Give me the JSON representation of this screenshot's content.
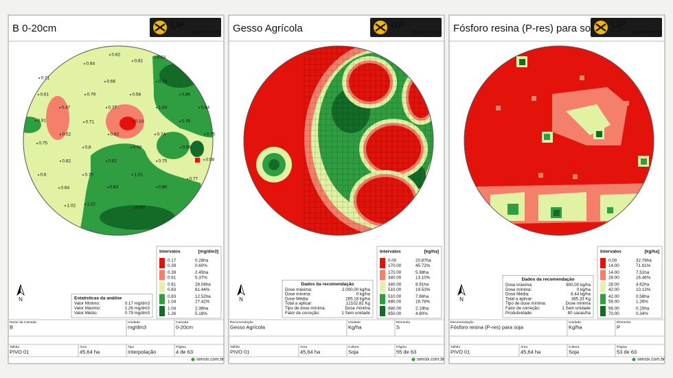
{
  "site": "sensix.com.br",
  "logo": {
    "brand": "UP",
    "tagline": "Agritechnology"
  },
  "north": "N",
  "panels": [
    {
      "title": "B 0-20cm",
      "legend": {
        "title": "Intervalos",
        "unit": "[mg/dm3]",
        "rows": [
          {
            "color": "#e3120b",
            "low": "0.17",
            "high": "0.39",
            "area": "0.28ha",
            "pct": "0.60%"
          },
          {
            "color": "#f4806c",
            "low": "0.39",
            "high": "0.61",
            "area": "2.45ha",
            "pct": "5.37%"
          },
          {
            "color": "#e2f2a4",
            "low": "0.61",
            "high": "0.83",
            "area": "28.04ha",
            "pct": "61.44%"
          },
          {
            "color": "#2f9e41",
            "low": "0.83",
            "high": "1.04",
            "area": "12.52ha",
            "pct": "27.42%"
          },
          {
            "color": "#136b27",
            "low": "1.04",
            "high": "1.26",
            "area": "2.36ha",
            "pct": "5.18%"
          }
        ]
      },
      "box": {
        "title": "Estatísticas da análise",
        "rows": [
          {
            "label": "Valor Mínimo:",
            "value": "0.17 mg/dm3"
          },
          {
            "label": "Valor Máximo:",
            "value": "1.26 mg/dm3"
          },
          {
            "label": "Valor Médio:",
            "value": "0.79 mg/dm3"
          }
        ]
      },
      "info": [
        {
          "label": "Nome da Camada",
          "value": "B"
        },
        {
          "label": "Unidade",
          "value": "mg/dm3"
        },
        {
          "label": "Camada",
          "value": "0-20cm"
        }
      ],
      "meta": [
        {
          "label": "Talhão",
          "value": "PIVO 01"
        },
        {
          "label": "Área",
          "value": "45,64 ha"
        },
        {
          "label": "Tipo",
          "value": "Interpolação"
        },
        {
          "label": "Página",
          "value": "4 de 63"
        }
      ],
      "map_labels": [
        "0.82",
        "0.81",
        "0.63",
        "0.64",
        "0.71",
        "0.66",
        "0.74",
        "0.61",
        "0.79",
        "0.58",
        "0.86",
        "0.47",
        "0.77",
        "1.03",
        "0.64",
        "0.91",
        "0.71",
        "0.14",
        "0.76",
        "0.52",
        "0.63",
        "0.74",
        "0.75",
        "0.75",
        "0.8",
        "0.99",
        "0.99",
        "0.82",
        "0.62",
        "0.75",
        "0.58",
        "0.6",
        "0.75",
        "1.01",
        "0.77",
        "0.64",
        "0.83",
        "0.86",
        "1.02",
        "1.02",
        "0.97"
      ]
    },
    {
      "title": "Gesso Agrícola",
      "legend": {
        "title": "Intervalos",
        "unit": "[kg/ha]",
        "rows": [
          {
            "color": "#e3120b",
            "low": "0.00",
            "high": "170.00",
            "area": "20.87ha",
            "pct": "45.72%"
          },
          {
            "color": "#f4806c",
            "low": "170.00",
            "high": "340.00",
            "area": "5.98ha",
            "pct": "13.10%"
          },
          {
            "color": "#e2f2a4",
            "low": "340.00",
            "high": "510.00",
            "area": "8.91ha",
            "pct": "19.53%"
          },
          {
            "color": "#2f9e41",
            "low": "510.00",
            "high": "680.00",
            "area": "7.66ha",
            "pct": "16.78%"
          },
          {
            "color": "#136b27",
            "low": "680.00",
            "high": "850.00",
            "area": "2.19ha",
            "pct": "4.80%"
          }
        ]
      },
      "box": {
        "title": "Dados da recomendação",
        "rows": [
          {
            "label": "Dose máxima:",
            "value": "2.000,00 kg/ha"
          },
          {
            "label": "Dose mínima:",
            "value": "0 kg/ha"
          },
          {
            "label": "Dose Média:",
            "value": "265.18 kg/ha"
          },
          {
            "label": "Total a aplicar:",
            "value": "12102.82 Kg"
          },
          {
            "label": "Tipo de dose mínima:",
            "value": "Dose mínima"
          },
          {
            "label": "Fator de correção:",
            "value": "1 Sem unidade"
          }
        ]
      },
      "info": [
        {
          "label": "Recomendação",
          "value": "Gesso Agrícola"
        },
        {
          "label": "Unidade",
          "value": "Kg/ha"
        },
        {
          "label": "Elemento",
          "value": "S"
        }
      ],
      "meta": [
        {
          "label": "Talhão",
          "value": "PIVO 01"
        },
        {
          "label": "Área",
          "value": "45,64 ha"
        },
        {
          "label": "Cultura",
          "value": "Soja"
        },
        {
          "label": "Página",
          "value": "55 de 63"
        }
      ]
    },
    {
      "title": "Fósforo resina (P-res) para soja",
      "legend": {
        "title": "Intervalos",
        "unit": "[kg/ha]",
        "rows": [
          {
            "color": "#e3120b",
            "low": "0.00",
            "high": "14.00",
            "area": "32.78ha",
            "pct": "71.81%"
          },
          {
            "color": "#f4806c",
            "low": "14.00",
            "high": "28.00",
            "area": "7.51ha",
            "pct": "16.46%"
          },
          {
            "color": "#e2f2a4",
            "low": "28.00",
            "high": "42.00",
            "area": "4.62ha",
            "pct": "10.13%"
          },
          {
            "color": "#2f9e41",
            "low": "42.00",
            "high": "56.00",
            "area": "0.58ha",
            "pct": "1.26%"
          },
          {
            "color": "#136b27",
            "low": "56.00",
            "high": "70.00",
            "area": "0.15ha",
            "pct": "0.34%"
          }
        ]
      },
      "box": {
        "title": "Dados da recomendação",
        "rows": [
          {
            "label": "Dose máxima:",
            "value": "800,00 kg/ha"
          },
          {
            "label": "Dose mínima:",
            "value": "0 kg/ha"
          },
          {
            "label": "Dose Média:",
            "value": "8.44 kg/ha"
          },
          {
            "label": "Total a aplicar:",
            "value": "385.33 Kg"
          },
          {
            "label": "Tipo de dose mínima:",
            "value": "Dose mínima"
          },
          {
            "label": "Fator de correção:",
            "value": "1 Sem unidade"
          },
          {
            "label": "Produtividade:",
            "value": "80 sacas/ha"
          }
        ]
      },
      "info": [
        {
          "label": "Recomendação",
          "value": "Fósforo resina (P-res) para soja"
        },
        {
          "label": "Unidade",
          "value": "Kg/ha"
        },
        {
          "label": "Elemento",
          "value": "P"
        }
      ],
      "meta": [
        {
          "label": "Talhão",
          "value": "PIVO 01"
        },
        {
          "label": "Área",
          "value": "45,64 ha"
        },
        {
          "label": "Cultura",
          "value": "Soja"
        },
        {
          "label": "Página",
          "value": "53 de 63"
        }
      ]
    }
  ]
}
